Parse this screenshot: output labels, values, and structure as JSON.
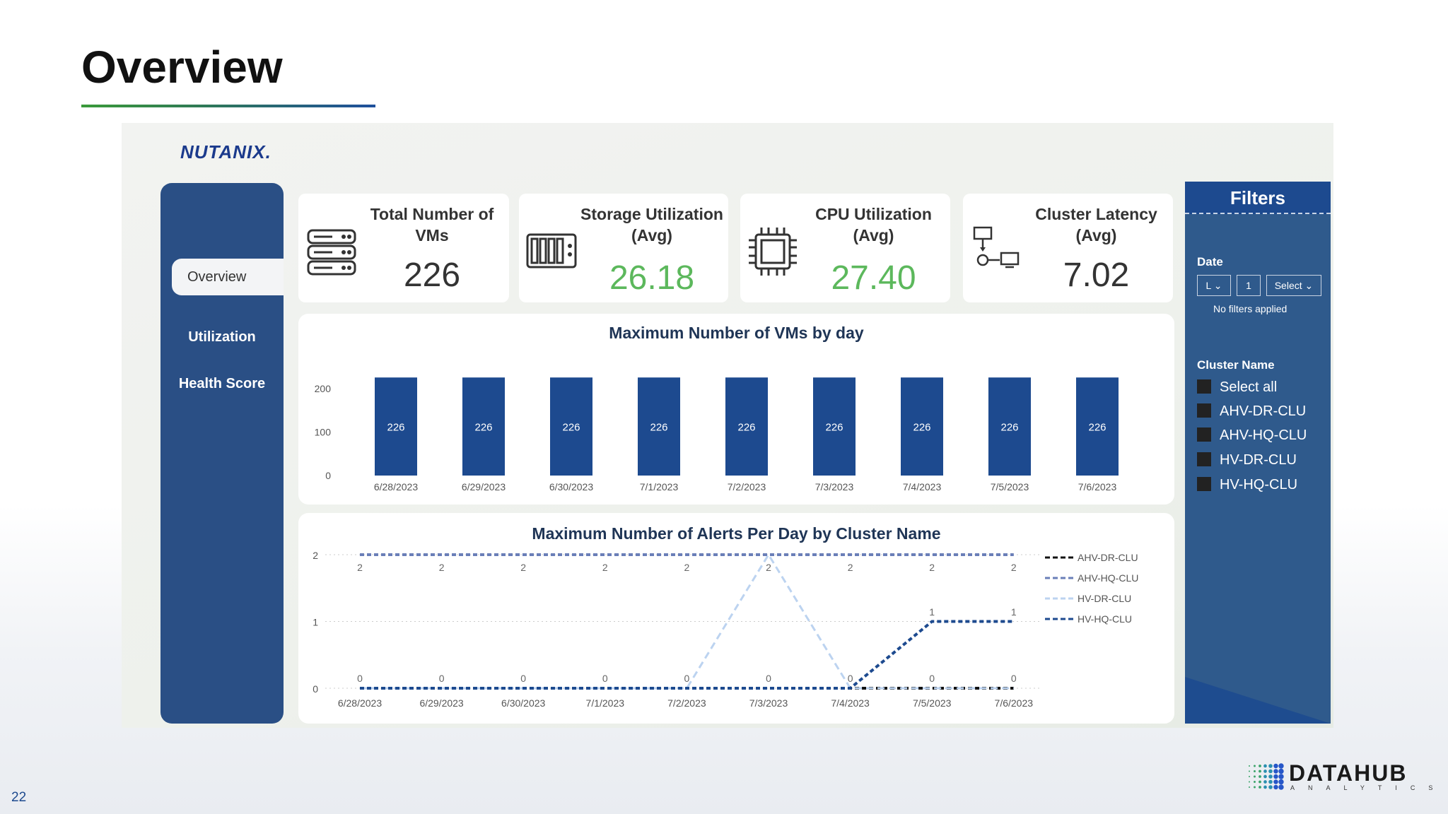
{
  "slide": {
    "title": "Overview",
    "page_number": "22",
    "footer_logo": "DATAHUB ANALYTICS"
  },
  "dashboard": {
    "logo": "NUTANIX.",
    "nav": [
      {
        "label": "Overview",
        "active": true
      },
      {
        "label": "Utilization"
      },
      {
        "label": "Health Score"
      }
    ],
    "kpis": [
      {
        "title": "Total Number of VMs",
        "value": "226",
        "icon": "server-stack-icon",
        "color": "#333333"
      },
      {
        "title": "Storage Utilization (Avg)",
        "value": "26.18",
        "icon": "storage-array-icon",
        "color": "#5cb85c"
      },
      {
        "title": "CPU Utilization (Avg)",
        "value": "27.40",
        "icon": "cpu-chip-icon",
        "color": "#5cb85c"
      },
      {
        "title": "Cluster Latency (Avg)",
        "value": "7.02",
        "icon": "network-latency-icon",
        "color": "#333333"
      }
    ],
    "filters": {
      "title": "Filters",
      "date": {
        "label": "Date",
        "mode": "L",
        "count": "1",
        "unit": "Select",
        "status": "No filters applied"
      },
      "cluster": {
        "label": "Cluster Name",
        "options": [
          "Select all",
          "AHV-DR-CLU",
          "AHV-HQ-CLU",
          "HV-DR-CLU",
          "HV-HQ-CLU"
        ]
      }
    }
  },
  "chart_data": [
    {
      "type": "bar",
      "title": "Maximum Number of VMs by day",
      "categories": [
        "6/28/2023",
        "6/29/2023",
        "6/30/2023",
        "7/1/2023",
        "7/2/2023",
        "7/3/2023",
        "7/4/2023",
        "7/5/2023",
        "7/6/2023"
      ],
      "values": [
        226,
        226,
        226,
        226,
        226,
        226,
        226,
        226,
        226
      ],
      "yticks": [
        0,
        100,
        200
      ],
      "ylim": [
        0,
        250
      ],
      "color": "#1d4a8f",
      "data_labels": true
    },
    {
      "type": "line",
      "title": "Maximum Number of Alerts Per Day by Cluster Name",
      "categories": [
        "6/28/2023",
        "6/29/2023",
        "6/30/2023",
        "7/1/2023",
        "7/2/2023",
        "7/3/2023",
        "7/4/2023",
        "7/5/2023",
        "7/6/2023"
      ],
      "yticks": [
        0,
        1,
        2
      ],
      "ylim": [
        0,
        2
      ],
      "legend": "right",
      "grid": true,
      "line_style": "dashed",
      "series": [
        {
          "name": "AHV-DR-CLU",
          "color": "#111111",
          "values": [
            0,
            0,
            0,
            0,
            0,
            0,
            0,
            0,
            0
          ]
        },
        {
          "name": "AHV-HQ-CLU",
          "color": "#6a7fb8",
          "values": [
            2,
            2,
            2,
            2,
            2,
            2,
            2,
            2,
            2
          ]
        },
        {
          "name": "HV-DR-CLU",
          "color": "#bcd3f0",
          "values": [
            0,
            0,
            0,
            0,
            0,
            2,
            0,
            0,
            0
          ]
        },
        {
          "name": "HV-HQ-CLU",
          "color": "#1d4a8f",
          "values": [
            0,
            0,
            0,
            0,
            0,
            0,
            0,
            1,
            1
          ]
        }
      ],
      "labels_top": [
        "2",
        "2",
        "2",
        "2",
        "2",
        "2",
        "2",
        "2",
        "2"
      ],
      "labels_bottom": [
        "0",
        "0",
        "0",
        "0",
        "0",
        "0",
        "0",
        "0",
        "0"
      ],
      "labels_mid": [
        {
          "x": "7/5/2023",
          "text": "1"
        },
        {
          "x": "7/6/2023",
          "text": "1"
        }
      ]
    }
  ]
}
